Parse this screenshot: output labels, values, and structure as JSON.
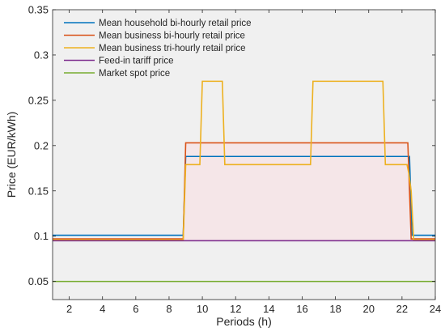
{
  "chart_data": {
    "type": "line",
    "xlabel": "Periods (h)",
    "ylabel": "Price (EUR/kWh)",
    "xlim": [
      1,
      24
    ],
    "ylim": [
      0.03,
      0.35
    ],
    "xticks": [
      2,
      4,
      6,
      8,
      10,
      12,
      14,
      16,
      18,
      20,
      22,
      24
    ],
    "yticks": [
      0.05,
      0.1,
      0.15,
      0.2,
      0.25,
      0.3,
      0.35
    ],
    "ytick_labels": [
      "0.05",
      "0.1",
      "0.15",
      "0.2",
      "0.25",
      "0.3",
      "0.35"
    ],
    "grid": false,
    "legend_position": "top-left",
    "background_fill": "#f5e6e8",
    "plot_background": "#f0f0f0",
    "series": [
      {
        "name": "Mean household bi-hourly retail price",
        "color": "#0072bd",
        "x": [
          1,
          8.85,
          9,
          22.45,
          22.6,
          24
        ],
        "y": [
          0.101,
          0.101,
          0.188,
          0.188,
          0.101,
          0.101
        ]
      },
      {
        "name": "Mean business bi-hourly retail price",
        "color": "#d95319",
        "x": [
          1,
          8.85,
          9,
          22.35,
          22.55,
          24
        ],
        "y": [
          0.097,
          0.097,
          0.203,
          0.203,
          0.097,
          0.097
        ]
      },
      {
        "name": "Mean business tri-hourly retail price",
        "color": "#edb120",
        "x": [
          1,
          8.85,
          9,
          9.85,
          10,
          11.2,
          11.35,
          16.5,
          16.65,
          20.85,
          21,
          22.3,
          22.4,
          22.55,
          22.7,
          24
        ],
        "y": [
          0.096,
          0.096,
          0.179,
          0.179,
          0.271,
          0.271,
          0.179,
          0.179,
          0.271,
          0.271,
          0.179,
          0.179,
          0.17,
          0.15,
          0.096,
          0.096
        ]
      },
      {
        "name": "Feed-in tariff price",
        "color": "#7e2f8e",
        "x": [
          1,
          24
        ],
        "y": [
          0.095,
          0.095
        ]
      },
      {
        "name": "Market spot price",
        "color": "#77ac30",
        "x": [
          1,
          24
        ],
        "y": [
          0.05,
          0.05
        ]
      }
    ]
  }
}
